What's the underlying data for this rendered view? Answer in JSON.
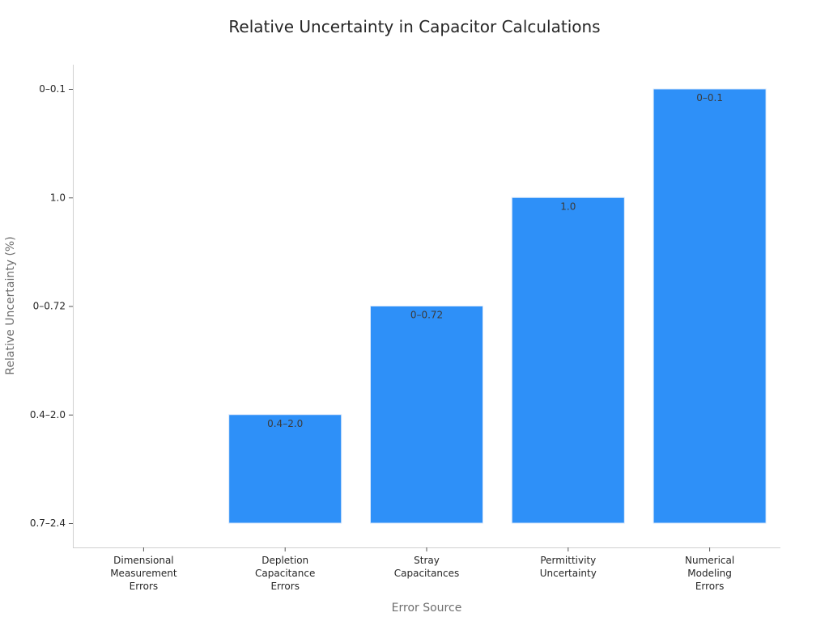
{
  "chart_data": {
    "type": "bar",
    "title": "Relative Uncertainty in Capacitor Calculations",
    "xlabel": "Error Source",
    "ylabel": "Relative Uncertainty (%)",
    "y_axis_type": "categorical",
    "y_ticks": [
      "0.7–2.4",
      "0.4–2.0",
      "0–0.72",
      "1.0",
      "0–0.1"
    ],
    "categories": [
      [
        "Dimensional",
        "Measurement",
        "Errors"
      ],
      [
        "Depletion",
        "Capacitance",
        "Errors"
      ],
      [
        "Stray",
        "Capacitances"
      ],
      [
        "Permittivity",
        "Uncertainty"
      ],
      [
        "Numerical",
        "Modeling",
        "Errors"
      ]
    ],
    "values": [
      "0.7–2.4",
      "0.4–2.0",
      "0–0.72",
      "1.0",
      "0–0.1"
    ],
    "value_index": [
      0,
      1,
      2,
      3,
      4
    ],
    "bar_labels": [
      "",
      "0.4–2.0",
      "0–0.72",
      "1.0",
      "0–0.1"
    ],
    "bar_color": "#2e90f8",
    "bar_edge_color": "#dbe9fb",
    "grid": false,
    "legend": "none"
  }
}
